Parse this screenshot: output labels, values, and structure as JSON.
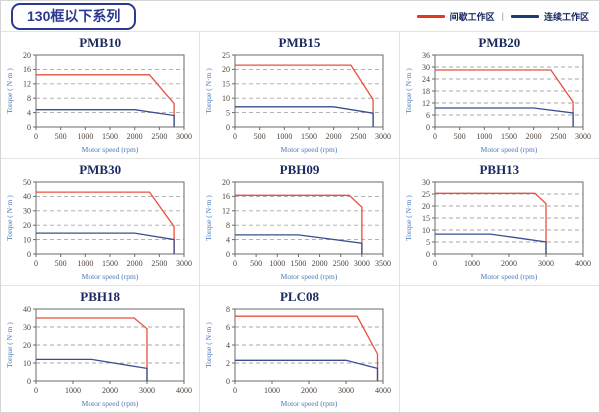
{
  "header": {
    "title": "130框以下系列"
  },
  "legend": {
    "separator": "|",
    "items": [
      {
        "label": "间歇工作区",
        "color": "#e0391f"
      },
      {
        "label": "连续工作区",
        "color": "#1e3a7c"
      }
    ]
  },
  "chart_data": [
    {
      "type": "line",
      "name": "PMB10",
      "xlabel": "Motor speed (rpm)",
      "ylabel": "Torque ( N·m )",
      "xlim": [
        0,
        3000
      ],
      "ylim": [
        0,
        20
      ],
      "xticks": [
        0,
        500,
        1000,
        1500,
        2000,
        2500,
        3000
      ],
      "yticks": [
        0,
        4,
        8,
        12,
        16,
        20
      ],
      "grid": "horizontal-dashed",
      "series": [
        {
          "name": "间歇工作区",
          "color": "#e8503c",
          "points": [
            [
              0,
              14.5
            ],
            [
              2300,
              14.5
            ],
            [
              2800,
              6.5
            ],
            [
              2800,
              0
            ]
          ]
        },
        {
          "name": "连续工作区",
          "color": "#36508e",
          "points": [
            [
              0,
              4.8
            ],
            [
              2000,
              4.8
            ],
            [
              2800,
              3.2
            ],
            [
              2800,
              0
            ]
          ]
        }
      ]
    },
    {
      "type": "line",
      "name": "PMB15",
      "xlabel": "Motor speed (rpm)",
      "ylabel": "Torque ( N·m )",
      "xlim": [
        0,
        3000
      ],
      "ylim": [
        0,
        25
      ],
      "xticks": [
        0,
        500,
        1000,
        1500,
        2000,
        2500,
        3000
      ],
      "yticks": [
        0,
        5,
        10,
        15,
        20,
        25
      ],
      "grid": "horizontal-dashed",
      "series": [
        {
          "name": "间歇工作区",
          "color": "#e8503c",
          "points": [
            [
              0,
              21.5
            ],
            [
              2350,
              21.5
            ],
            [
              2800,
              9.5
            ],
            [
              2800,
              0
            ]
          ]
        },
        {
          "name": "连续工作区",
          "color": "#36508e",
          "points": [
            [
              0,
              7
            ],
            [
              2000,
              7
            ],
            [
              2800,
              4.8
            ],
            [
              2800,
              0
            ]
          ]
        }
      ]
    },
    {
      "type": "line",
      "name": "PMB20",
      "xlabel": "Motor speed (rpm)",
      "ylabel": "Torque ( N·m )",
      "xlim": [
        0,
        3000
      ],
      "ylim": [
        0,
        36
      ],
      "xticks": [
        0,
        500,
        1000,
        1500,
        2000,
        2500,
        3000
      ],
      "yticks": [
        0,
        6,
        12,
        18,
        24,
        30,
        36
      ],
      "grid": "horizontal-dashed",
      "series": [
        {
          "name": "间歇工作区",
          "color": "#e8503c",
          "points": [
            [
              0,
              28.5
            ],
            [
              2350,
              28.5
            ],
            [
              2800,
              12.5
            ],
            [
              2800,
              0
            ]
          ]
        },
        {
          "name": "连续工作区",
          "color": "#36508e",
          "points": [
            [
              0,
              9.5
            ],
            [
              2000,
              9.5
            ],
            [
              2800,
              7
            ],
            [
              2800,
              0
            ]
          ]
        }
      ]
    },
    {
      "type": "line",
      "name": "PMB30",
      "xlabel": "Motor speed (rpm)",
      "ylabel": "Torque ( N·m )",
      "xlim": [
        0,
        3000
      ],
      "ylim": [
        0,
        50
      ],
      "xticks": [
        0,
        500,
        1000,
        1500,
        2000,
        2500,
        3000
      ],
      "yticks": [
        0,
        10,
        20,
        30,
        40,
        50
      ],
      "grid": "horizontal-dashed",
      "series": [
        {
          "name": "间歇工作区",
          "color": "#e8503c",
          "points": [
            [
              0,
              43
            ],
            [
              2300,
              43
            ],
            [
              2800,
              19
            ],
            [
              2800,
              0
            ]
          ]
        },
        {
          "name": "连续工作区",
          "color": "#36508e",
          "points": [
            [
              0,
              14.5
            ],
            [
              2000,
              14.5
            ],
            [
              2800,
              10
            ],
            [
              2800,
              0
            ]
          ]
        }
      ]
    },
    {
      "type": "line",
      "name": "PBH09",
      "xlabel": "Motor speed (rpm)",
      "ylabel": "Torque ( N·m )",
      "xlim": [
        0,
        3500
      ],
      "ylim": [
        0,
        20
      ],
      "xticks": [
        0,
        500,
        1000,
        1500,
        2000,
        2500,
        3000,
        3500
      ],
      "yticks": [
        0,
        4,
        8,
        12,
        16,
        20
      ],
      "grid": "horizontal-dashed",
      "series": [
        {
          "name": "间歇工作区",
          "color": "#e8503c",
          "points": [
            [
              0,
              16.3
            ],
            [
              2700,
              16.3
            ],
            [
              3000,
              13
            ],
            [
              3000,
              0
            ]
          ]
        },
        {
          "name": "连续工作区",
          "color": "#36508e",
          "points": [
            [
              0,
              5.3
            ],
            [
              1500,
              5.3
            ],
            [
              3000,
              3
            ],
            [
              3000,
              0
            ]
          ]
        }
      ]
    },
    {
      "type": "line",
      "name": "PBH13",
      "xlabel": "Motor speed (rpm)",
      "ylabel": "Torque ( N·m )",
      "xlim": [
        0,
        4000
      ],
      "ylim": [
        0,
        30
      ],
      "xticks": [
        0,
        1000,
        2000,
        3000,
        4000
      ],
      "yticks": [
        0,
        5,
        10,
        15,
        20,
        25,
        30
      ],
      "grid": "horizontal-dashed",
      "series": [
        {
          "name": "间歇工作区",
          "color": "#e8503c",
          "points": [
            [
              0,
              25.3
            ],
            [
              2700,
              25.3
            ],
            [
              3000,
              21
            ],
            [
              3000,
              0
            ]
          ]
        },
        {
          "name": "连续工作区",
          "color": "#36508e",
          "points": [
            [
              0,
              8.3
            ],
            [
              1500,
              8.3
            ],
            [
              3000,
              5
            ],
            [
              3000,
              0
            ]
          ]
        }
      ]
    },
    {
      "type": "line",
      "name": "PBH18",
      "xlabel": "Motor speed (rpm)",
      "ylabel": "Torque ( N·m )",
      "xlim": [
        0,
        4000
      ],
      "ylim": [
        0,
        40
      ],
      "xticks": [
        0,
        1000,
        2000,
        3000,
        4000
      ],
      "yticks": [
        0,
        10,
        20,
        30,
        40
      ],
      "grid": "horizontal-dashed",
      "series": [
        {
          "name": "间歇工作区",
          "color": "#e8503c",
          "points": [
            [
              0,
              35
            ],
            [
              2650,
              35
            ],
            [
              3000,
              29
            ],
            [
              3000,
              0
            ]
          ]
        },
        {
          "name": "连续工作区",
          "color": "#36508e",
          "points": [
            [
              0,
              12
            ],
            [
              1500,
              12
            ],
            [
              3000,
              7
            ],
            [
              3000,
              0
            ]
          ]
        }
      ]
    },
    {
      "type": "line",
      "name": "PLC08",
      "xlabel": "Motor speed (rpm)",
      "ylabel": "Torque ( N·m )",
      "xlim": [
        0,
        4000
      ],
      "ylim": [
        0,
        8
      ],
      "xticks": [
        0,
        1000,
        2000,
        3000,
        4000
      ],
      "yticks": [
        0,
        2,
        4,
        6,
        8
      ],
      "grid": "horizontal-dashed",
      "series": [
        {
          "name": "间歇工作区",
          "color": "#e8503c",
          "points": [
            [
              0,
              7.2
            ],
            [
              3300,
              7.2
            ],
            [
              3850,
              3
            ],
            [
              3850,
              0
            ]
          ]
        },
        {
          "name": "连续工作区",
          "color": "#36508e",
          "points": [
            [
              0,
              2.3
            ],
            [
              3000,
              2.3
            ],
            [
              3850,
              1.4
            ],
            [
              3850,
              0
            ]
          ]
        }
      ]
    }
  ]
}
